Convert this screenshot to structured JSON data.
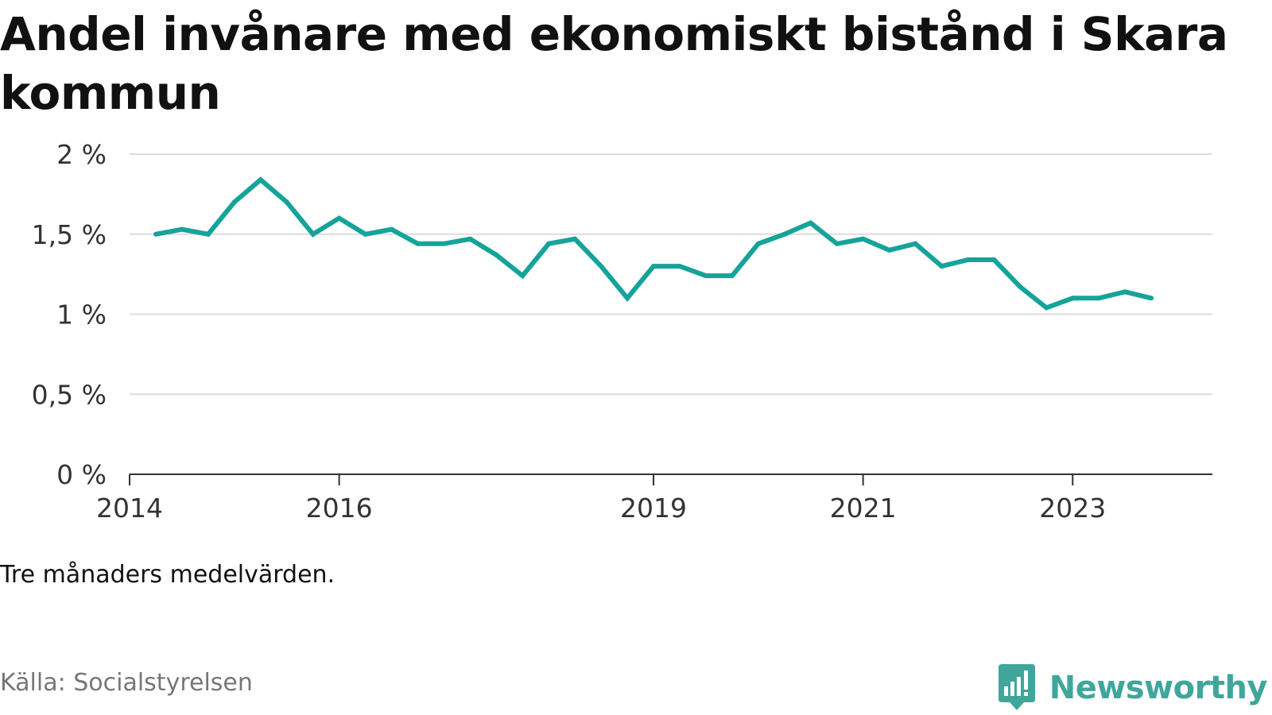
{
  "title": "Andel invånare med ekonomiskt bistånd i Skara kommun",
  "note": "Tre månaders medelvärden.",
  "source": "Källa: Socialstyrelsen",
  "brand": {
    "name": "Newsworthy",
    "icon": "newsworthy-logo-icon",
    "color": "#40a69c"
  },
  "colors": {
    "line": "#15a39a",
    "grid": "#dddddd",
    "axis": "#333333"
  },
  "chart_data": {
    "type": "line",
    "title": "Andel invånare med ekonomiskt bistånd i Skara kommun",
    "xlabel": "",
    "ylabel": "",
    "ylim": [
      0,
      2
    ],
    "yticks": [
      0,
      0.5,
      1,
      1.5,
      2
    ],
    "ytick_labels": [
      "0 %",
      "0,5 %",
      "1 %",
      "1,5 %",
      "2 %"
    ],
    "xlim": [
      "2014-01",
      "2024-05"
    ],
    "xticks": [
      "2014-01",
      "2016-01",
      "2019-01",
      "2021-01",
      "2023-01"
    ],
    "xtick_labels": [
      "2014",
      "2016",
      "2019",
      "2021",
      "2023"
    ],
    "grid": true,
    "legend": "none",
    "series": [
      {
        "x": [
          "2014-04",
          "2014-07",
          "2014-10",
          "2015-01",
          "2015-04",
          "2015-07",
          "2015-10",
          "2016-01",
          "2016-04",
          "2016-07",
          "2016-10",
          "2017-01",
          "2017-04",
          "2017-07",
          "2017-10",
          "2018-01",
          "2018-04",
          "2018-07",
          "2018-10",
          "2019-01",
          "2019-04",
          "2019-07",
          "2019-10",
          "2020-01",
          "2020-04",
          "2020-07",
          "2020-10",
          "2021-01",
          "2021-04",
          "2021-07",
          "2021-10",
          "2022-01",
          "2022-04",
          "2022-07",
          "2022-10",
          "2023-01",
          "2023-04",
          "2023-07",
          "2023-10"
        ],
        "values": [
          1.5,
          1.53,
          1.5,
          1.7,
          1.84,
          1.7,
          1.5,
          1.6,
          1.5,
          1.53,
          1.44,
          1.44,
          1.47,
          1.37,
          1.24,
          1.44,
          1.47,
          1.3,
          1.1,
          1.3,
          1.3,
          1.24,
          1.24,
          1.44,
          1.5,
          1.57,
          1.44,
          1.47,
          1.4,
          1.44,
          1.3,
          1.34,
          1.34,
          1.17,
          1.04,
          1.1,
          1.1,
          1.14,
          1.1
        ]
      }
    ]
  }
}
